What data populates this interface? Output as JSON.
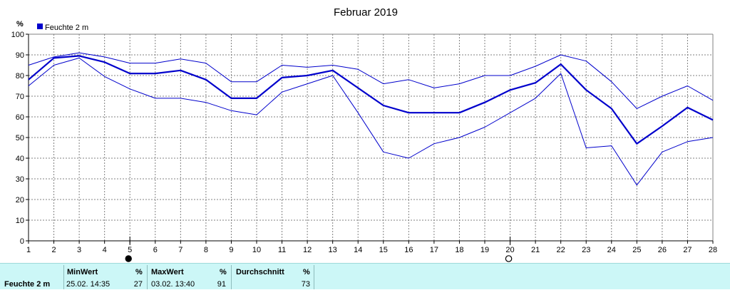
{
  "chart_data": {
    "type": "line",
    "title": "Februar 2019",
    "ylabel": "%",
    "ylim": [
      0,
      100
    ],
    "yticks": [
      "0",
      "10",
      "20",
      "30",
      "40",
      "50",
      "60",
      "70",
      "80",
      "90",
      "100"
    ],
    "xlim": [
      1,
      28
    ],
    "x": [
      1,
      2,
      3,
      4,
      5,
      6,
      7,
      8,
      9,
      10,
      11,
      12,
      13,
      14,
      15,
      16,
      17,
      18,
      19,
      20,
      21,
      22,
      23,
      24,
      25,
      26,
      27,
      28
    ],
    "xticks": [
      "1",
      "2",
      "3",
      "4",
      "5",
      "6",
      "7",
      "8",
      "9",
      "10",
      "11",
      "12",
      "13",
      "14",
      "15",
      "16",
      "17",
      "18",
      "19",
      "20",
      "21",
      "22",
      "23",
      "24",
      "25",
      "26",
      "27",
      "28"
    ],
    "grid": true,
    "legend": "top-left",
    "legend_label": "Feuchte  2 m",
    "markers": [
      {
        "x": 5,
        "symbol": "new-moon"
      },
      {
        "x": 20,
        "symbol": "full-moon"
      }
    ],
    "series": [
      {
        "name": "Feuchte  2 m",
        "role": "mean",
        "color": "#0000cc",
        "values": [
          78,
          88.5,
          89.5,
          86.5,
          81,
          81,
          82.5,
          78,
          69,
          69,
          79,
          80,
          82.5,
          74,
          65.5,
          62,
          62,
          62,
          67,
          73,
          76.5,
          85.5,
          73,
          64,
          47,
          55.5,
          64.5,
          58.5
        ]
      },
      {
        "role": "max",
        "color": "#0000cc",
        "values": [
          85,
          89,
          91,
          89,
          86,
          86,
          88,
          86,
          77,
          77,
          85,
          84,
          85,
          83,
          76,
          78,
          74,
          76,
          80,
          80,
          84.5,
          90,
          87,
          77,
          64,
          70,
          75,
          68
        ]
      },
      {
        "role": "min",
        "color": "#0000cc",
        "values": [
          75,
          85,
          88.5,
          79.5,
          73.5,
          69,
          69,
          67,
          63,
          61,
          72,
          76,
          80,
          62,
          43,
          40,
          47,
          50,
          55,
          62,
          69,
          81,
          45,
          46,
          27,
          43,
          48,
          50
        ]
      }
    ]
  },
  "stats": {
    "sensor": "Feuchte   2 m",
    "min": {
      "label": "MinWert",
      "unit": "%",
      "datetime": "25.02.  14:35",
      "value": "27"
    },
    "max": {
      "label": "MaxWert",
      "unit": "%",
      "datetime": "03.02.  13:40",
      "value": "91"
    },
    "avg": {
      "label": "Durchschnitt",
      "unit": "%",
      "value": "73"
    }
  },
  "colors": {
    "line": "#0000cc",
    "grid": "#808080",
    "stats_bg": "#ccf7f7"
  }
}
